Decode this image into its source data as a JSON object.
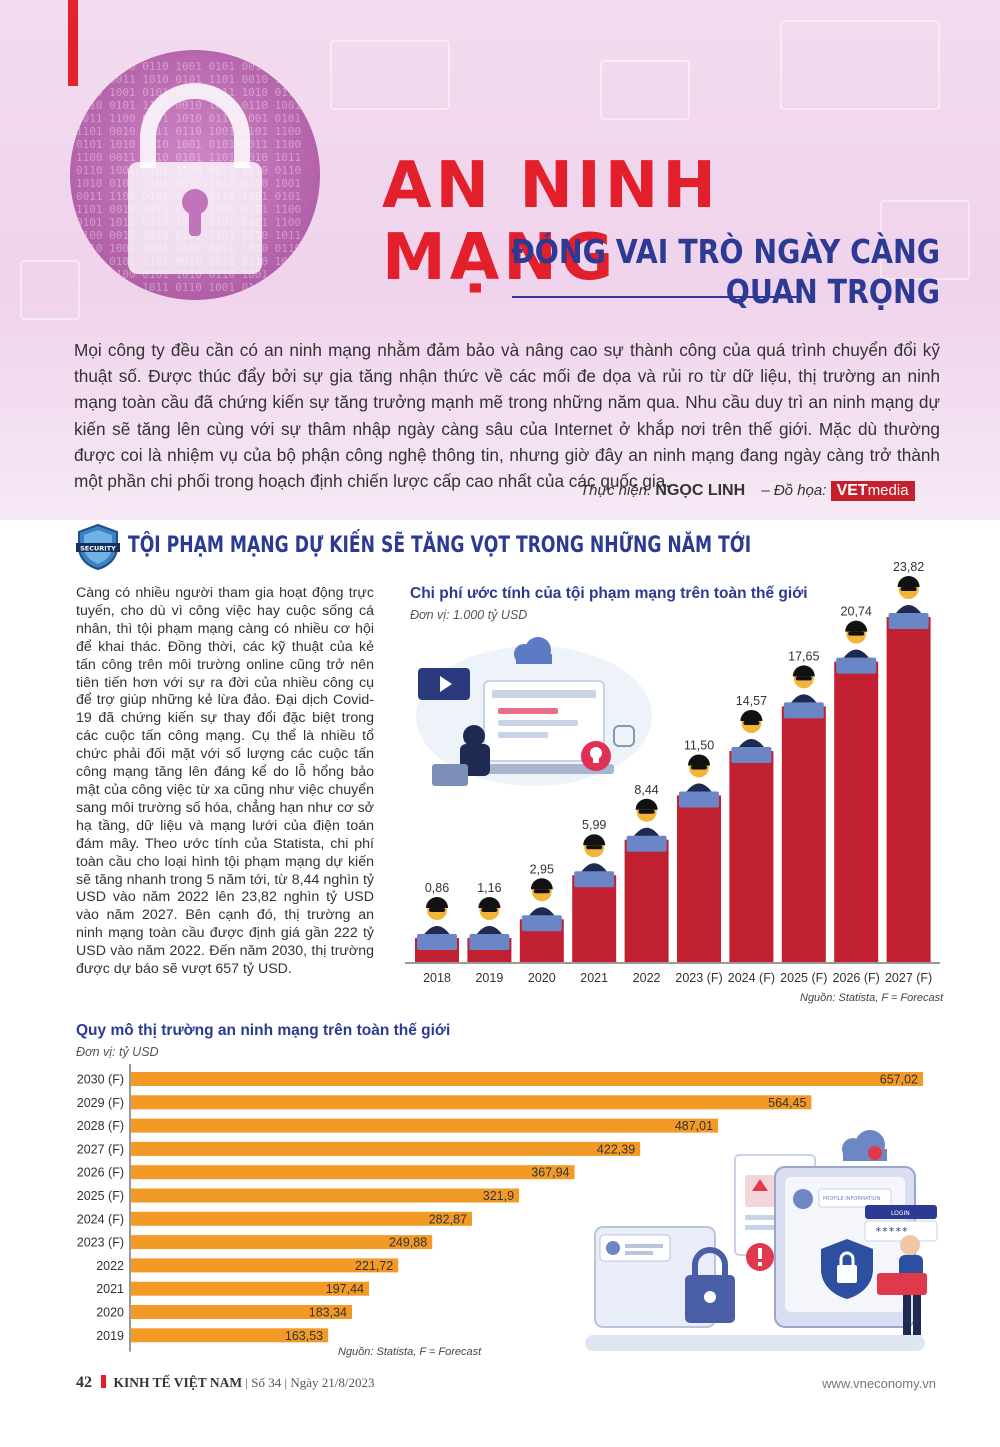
{
  "header": {
    "title": "AN NINH MẠNG",
    "subtitle": "ĐÓNG VAI TRÒ NGÀY CÀNG QUAN TRỌNG",
    "intro": "Mọi công ty đều cần có an ninh mạng nhằm đảm bảo và nâng cao sự thành công của quá trình chuyển đổi kỹ thuật số. Được thúc đẩy bởi sự gia tăng nhận thức về các mối đe dọa và rủi ro từ dữ liệu, thị trường an ninh mạng toàn cầu đã chứng kiến sự tăng trưởng mạnh mẽ trong những năm qua. Nhu cầu duy trì an ninh mạng dự kiến sẽ tăng lên cùng với sự thâm nhập ngày càng sâu của Internet ở khắp nơi trên thế giới. Mặc dù thường được coi là nhiệm vụ của bộ phận công nghệ thông tin, nhưng giờ đây an ninh mạng đang ngày càng trở thành một phần chi phối trong hoạch định chiến lược cấp cao nhất của các quốc gia.",
    "credit_label": "Thực hiện:",
    "credit_name": "NGỌC LINH",
    "graphic_label": "– Đồ họa:",
    "brand_bold": "VET",
    "brand_light": "media"
  },
  "section": {
    "title": "TỘI PHẠM MẠNG DỰ KIẾN SẼ TĂNG VỌT TRONG NHỮNG NĂM TỚI",
    "shield_text": "SECURITY",
    "body": "Càng có nhiều người tham gia hoạt động trực tuyến, cho dù vì công việc hay cuộc sống cá nhân, thì tội phạm mạng càng có nhiều cơ hội để khai thác. Đồng thời, các kỹ thuật của kẻ tấn công trên môi trường online cũng trở nên tiên tiến hơn với sự ra đời của nhiều công cụ để trợ giúp những kẻ lừa đảo. Đại dịch Covid-19 đã chứng kiến sự thay đổi đặc biệt trong các cuộc tấn công mạng. Cụ thể là nhiều tổ chức phải đối mặt với số lượng các cuộc tấn công mạng tăng lên đáng kể do lỗ hổng bảo mật của công việc từ xa cũng như việc chuyển sang môi trường số hóa, chẳng hạn như cơ sở hạ tầng, dữ liệu và mạng lưới của điện toán đám mây. Theo ước tính của Statista, chi phí toàn cầu cho loại hình tội phạm mạng dự kiến sẽ tăng nhanh trong 5 năm tới, từ 8,44 nghìn tỷ USD vào năm 2022 lên 23,82 nghìn tỷ USD vào năm 2027. Bên cạnh đó, thị trường an ninh mạng toàn cầu được định giá gần 222 tỷ USD vào năm 2022. Đến năm 2030, thị trường được dự báo sẽ vượt 657 tỷ USD."
  },
  "chart_data": [
    {
      "type": "bar",
      "title": "Chi phí ước tính của tội phạm mạng trên toàn thế giới",
      "unit": "Đơn vị: 1.000 tỷ USD",
      "categories": [
        "2018",
        "2019",
        "2020",
        "2021",
        "2022",
        "2023 (F)",
        "2024 (F)",
        "2025 (F)",
        "2026 (F)",
        "2027 (F)"
      ],
      "values": [
        0.86,
        1.16,
        2.95,
        5.99,
        8.44,
        11.5,
        14.57,
        17.65,
        20.74,
        23.82
      ],
      "labels": [
        "0,86",
        "1,16",
        "2,95",
        "5,99",
        "8,44",
        "11,50",
        "14,57",
        "17,65",
        "20,74",
        "23,82"
      ],
      "color": "#c0202f",
      "source": "Nguồn: Statista, F = Forecast"
    },
    {
      "type": "barh",
      "title": "Quy mô thị trường an ninh mạng trên toàn thế giới",
      "unit": "Đơn vị: tỷ USD",
      "categories": [
        "2030 (F)",
        "2029 (F)",
        "2028 (F)",
        "2027 (F)",
        "2026 (F)",
        "2025 (F)",
        "2024 (F)",
        "2023 (F)",
        "2022",
        "2021",
        "2020",
        "2019"
      ],
      "values": [
        657.02,
        564.45,
        487.01,
        422.39,
        367.94,
        321.9,
        282.87,
        249.88,
        221.72,
        197.44,
        183.34,
        163.53
      ],
      "labels": [
        "657,02",
        "564,45",
        "487,01",
        "422,39",
        "367,94",
        "321,9",
        "282,87",
        "249,88",
        "221,72",
        "197,44",
        "183,34",
        "163,53"
      ],
      "color": "#f39a26",
      "source": "Nguồn: Statista, F = Forecast"
    }
  ],
  "illustration": {
    "password_mask": "*****",
    "profile_label": "PROFILE INFORMATION",
    "login_label": "LOGIN"
  },
  "footer": {
    "page": "42",
    "magazine": "KINH TẾ VIỆT NAM",
    "issue": "Số 34",
    "date": "Ngày 21/8/2023",
    "site": "www.vneconomy.vn"
  }
}
